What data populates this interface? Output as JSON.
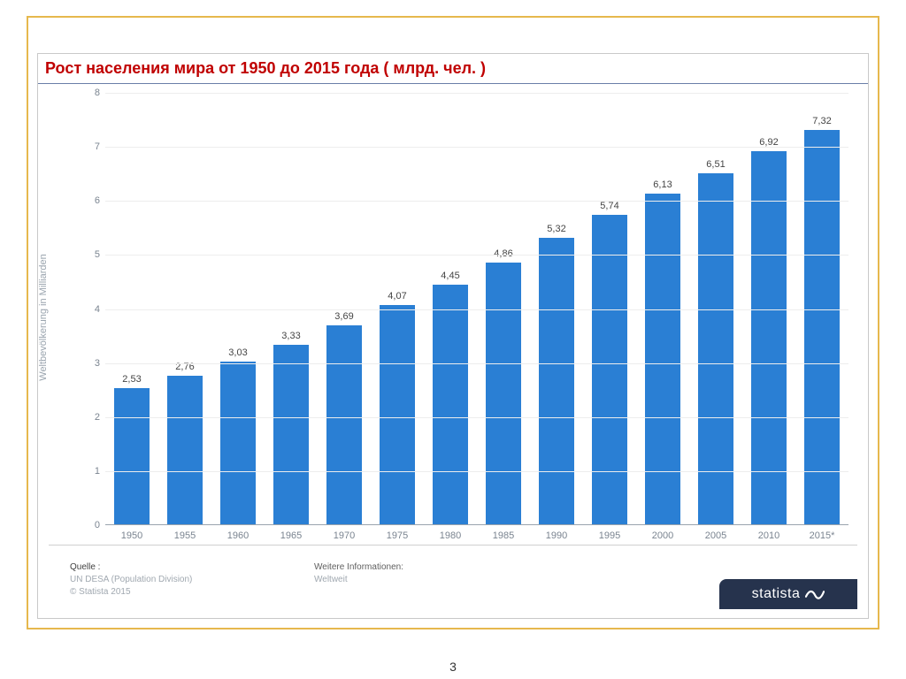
{
  "page_number": "3",
  "panel_title": "Рост населения мира от 1950 до 2015 года ( млрд. чел. )",
  "chart": {
    "type": "bar",
    "y_axis_label": "Weltbevölkerung in Milliarden",
    "ylim": [
      0,
      8
    ],
    "ytick_step": 1,
    "background_color": "#ffffff",
    "grid_color": "#ededed",
    "axis_color": "#9aa4ae",
    "tick_label_color": "#7a8490",
    "tick_fontsize": 11,
    "value_label_fontsize": 11,
    "value_label_color": "#444444",
    "bar_color": "#2a7fd4",
    "bar_width_ratio": 0.68,
    "categories": [
      "1950",
      "1955",
      "1960",
      "1965",
      "1970",
      "1975",
      "1980",
      "1985",
      "1990",
      "1995",
      "2000",
      "2005",
      "2010",
      "2015*"
    ],
    "values": [
      2.53,
      2.76,
      3.03,
      3.33,
      3.69,
      4.07,
      4.45,
      4.86,
      5.32,
      5.74,
      6.13,
      6.51,
      6.92,
      7.32
    ],
    "value_labels": [
      "2,53",
      "2,76",
      "3,03",
      "3,33",
      "3,69",
      "4,07",
      "4,45",
      "4,86",
      "5,32",
      "5,74",
      "6,13",
      "6,51",
      "6,92",
      "7,32"
    ]
  },
  "source": {
    "label": "Quelle :",
    "line1": "UN DESA (Population Division)",
    "line2": "© Statista 2015"
  },
  "more_info": {
    "label": "Weitere Informationen:",
    "line1": "Weltweit"
  },
  "branding": {
    "name": "statista",
    "badge_bg": "#26334d",
    "badge_fg": "#ffffff"
  },
  "frame_border_color": "#e6b84d",
  "title_color": "#c00000",
  "title_fontsize": 18
}
